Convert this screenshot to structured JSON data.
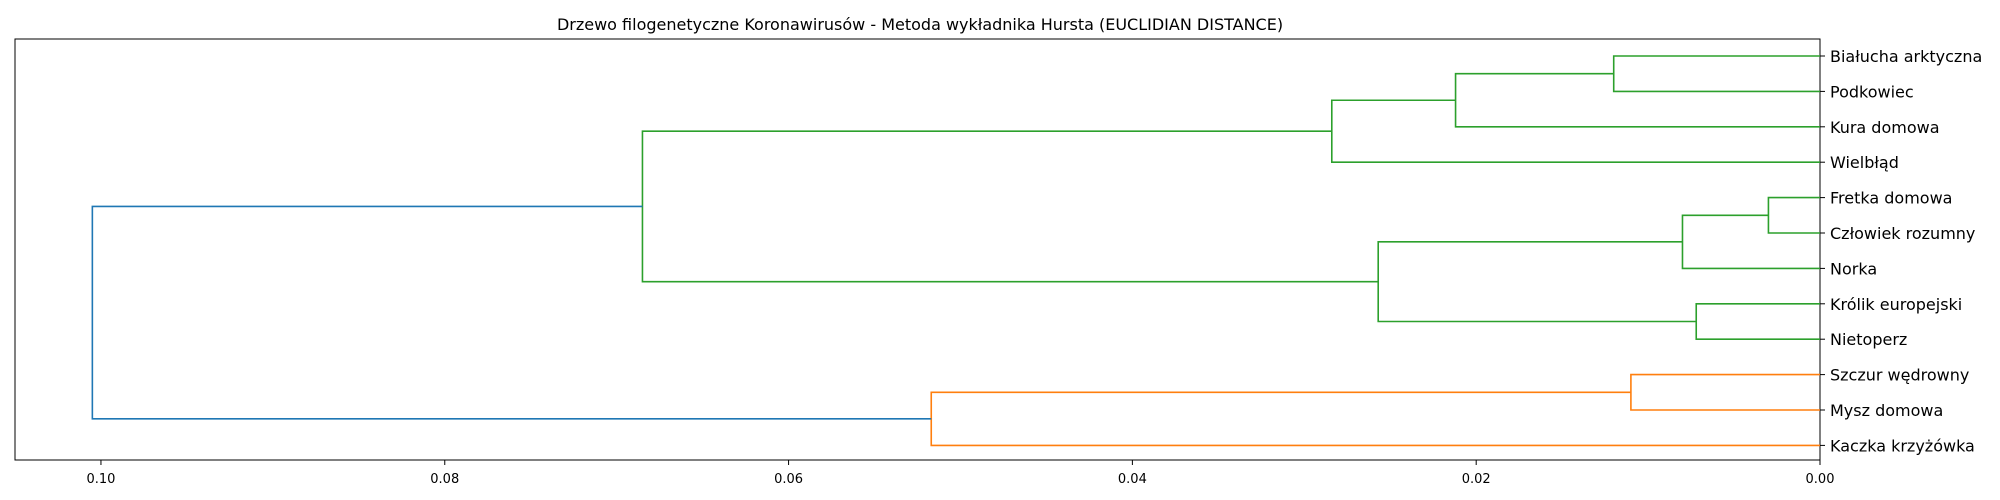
{
  "chart_data": {
    "type": "dendrogram",
    "title": "Drzewo filogenetyczne Koronawirusów - Metoda wykładnika Hursta (EUCLIDIAN DISTANCE)",
    "orientation": "left",
    "xlabel": "",
    "ylabel": "",
    "xlim": [
      0.105,
      0.0
    ],
    "xticks": [
      0.1,
      0.08,
      0.06,
      0.04,
      0.02,
      0.0
    ],
    "xtick_labels": [
      "0.10",
      "0.08",
      "0.06",
      "0.04",
      "0.02",
      "0.00"
    ],
    "leaves": [
      "Białucha arktyczna",
      "Podkowiec",
      "Kura domowa",
      "Wielbłąd",
      "Fretka domowa",
      "Człowiek rozumny",
      "Norka",
      "Królik europejski",
      "Nietoperz",
      "Szczur wędrowny",
      "Mysz domowa",
      "Kaczka krzyżówka"
    ],
    "colors": {
      "c1": "#2ca02c",
      "c2": "#ff7f0e",
      "root": "#1f77b4"
    },
    "links": [
      {
        "a": "L0",
        "b": "L1",
        "height": 0.012,
        "color": "c1"
      },
      {
        "a": "N0",
        "b": "L2",
        "height": 0.0212,
        "color": "c1"
      },
      {
        "a": "N1",
        "b": "L3",
        "height": 0.0284,
        "color": "c1"
      },
      {
        "a": "L4",
        "b": "L5",
        "height": 0.003,
        "color": "c1"
      },
      {
        "a": "N3",
        "b": "L6",
        "height": 0.008,
        "color": "c1"
      },
      {
        "a": "L7",
        "b": "L8",
        "height": 0.0072,
        "color": "c1"
      },
      {
        "a": "N4",
        "b": "N5",
        "height": 0.0257,
        "color": "c1"
      },
      {
        "a": "N2",
        "b": "N6",
        "height": 0.0685,
        "color": "c1"
      },
      {
        "a": "L9",
        "b": "L10",
        "height": 0.011,
        "color": "c2"
      },
      {
        "a": "N8",
        "b": "L11",
        "height": 0.0517,
        "color": "c2"
      },
      {
        "a": "N7",
        "b": "N9",
        "height": 0.1005,
        "color": "root"
      }
    ]
  }
}
